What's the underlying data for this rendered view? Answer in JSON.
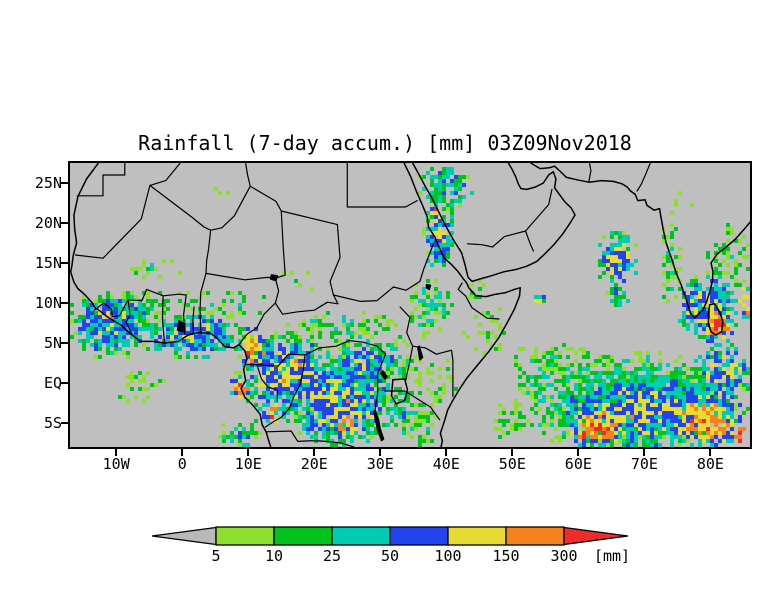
{
  "title": "Rainfall (7-day accum.) [mm] 03Z09Nov2018",
  "chart_data": {
    "type": "heatmap",
    "title": "Rainfall (7-day accum.) [mm] 03Z09Nov2018",
    "variable": "Rainfall (7-day accum.)",
    "unit": "mm",
    "valid_time": "03Z09Nov2018",
    "map_background": "#bfbfbf",
    "frame_color": "#000000",
    "lon_range": [
      -17,
      86
    ],
    "lat_range": [
      -8,
      27.5
    ],
    "x_ticks": [
      {
        "lon": -10,
        "label": "10W"
      },
      {
        "lon": 0,
        "label": "0"
      },
      {
        "lon": 10,
        "label": "10E"
      },
      {
        "lon": 20,
        "label": "20E"
      },
      {
        "lon": 30,
        "label": "30E"
      },
      {
        "lon": 40,
        "label": "40E"
      },
      {
        "lon": 50,
        "label": "50E"
      },
      {
        "lon": 60,
        "label": "60E"
      },
      {
        "lon": 70,
        "label": "70E"
      },
      {
        "lon": 80,
        "label": "80E"
      }
    ],
    "y_ticks": [
      {
        "lat": 25,
        "label": "25N"
      },
      {
        "lat": 20,
        "label": "20N"
      },
      {
        "lat": 15,
        "label": "15N"
      },
      {
        "lat": 10,
        "label": "10N"
      },
      {
        "lat": 5,
        "label": "5N"
      },
      {
        "lat": 0,
        "label": "EQ"
      },
      {
        "lat": -5,
        "label": "5S"
      }
    ],
    "colorbar": {
      "unit_label": "[mm]",
      "thresholds": [
        5,
        10,
        25,
        50,
        100,
        150,
        300
      ],
      "threshold_labels": [
        "5",
        "10",
        "25",
        "50",
        "100",
        "150",
        "300"
      ],
      "below_color": "#b9b9b9",
      "bin_colors": [
        "#8ce02c",
        "#00c41e",
        "#00ccb4",
        "#2244ee",
        "#e8dc30",
        "#f5821e",
        "#ee2c2c"
      ],
      "above_color": "#ee2c2c"
    },
    "rain_regions": [
      [
        -10.5,
        7.3,
        8,
        4.3,
        4,
        0.9
      ],
      [
        -11.2,
        8.2,
        1.6,
        1.1,
        6,
        0.7
      ],
      [
        2,
        6,
        9,
        3,
        4,
        0.85
      ],
      [
        -4,
        14.4,
        5,
        1.4,
        2,
        0.28
      ],
      [
        0,
        9.7,
        15,
        2,
        2,
        0.45
      ],
      [
        24,
        7,
        9,
        2,
        2,
        0.5
      ],
      [
        6.5,
        24,
        1.8,
        1,
        1,
        0.3
      ],
      [
        17.5,
        12.5,
        4,
        2,
        1,
        0.15
      ],
      [
        10.8,
        4.3,
        2.6,
        2.9,
        6,
        0.8
      ],
      [
        16,
        1,
        8,
        5.5,
        4.5,
        0.9
      ],
      [
        24,
        -2.5,
        9,
        6,
        4.5,
        0.9
      ],
      [
        27.5,
        2.5,
        5,
        3,
        4,
        0.8
      ],
      [
        8.8,
        -0.5,
        2,
        1.6,
        6,
        0.7
      ],
      [
        13.8,
        -3.8,
        2.2,
        1.8,
        6,
        0.7
      ],
      [
        25,
        -5.2,
        3,
        2,
        6,
        0.65
      ],
      [
        20.5,
        -1.5,
        1.8,
        1.4,
        6,
        0.6
      ],
      [
        17.2,
        2.8,
        1.6,
        1.3,
        6,
        0.6
      ],
      [
        9,
        -6.5,
        3.5,
        2.3,
        3,
        0.7
      ],
      [
        -6,
        -0.5,
        4,
        2.5,
        1.5,
        0.35
      ],
      [
        32,
        3,
        3.5,
        3,
        2.5,
        0.6
      ],
      [
        33.5,
        -3.5,
        3,
        3.5,
        3,
        0.6
      ],
      [
        36.5,
        -5.5,
        3,
        2.5,
        2,
        0.4
      ],
      [
        37.5,
        9.5,
        3.4,
        4,
        2.5,
        0.6
      ],
      [
        39,
        18.5,
        2.6,
        5,
        4,
        0.8
      ],
      [
        40,
        24.5,
        4.5,
        3.2,
        3.5,
        0.7
      ],
      [
        38.3,
        21.3,
        1.3,
        1.3,
        6,
        0.75
      ],
      [
        38,
        0,
        4.5,
        4.5,
        1.5,
        0.3
      ],
      [
        46.5,
        6.5,
        4,
        3.5,
        1.5,
        0.22
      ],
      [
        45,
        11.5,
        2.5,
        1.5,
        1.5,
        0.25
      ],
      [
        54,
        10.5,
        1.4,
        1,
        4,
        0.8
      ],
      [
        58,
        2,
        5,
        3.5,
        2,
        0.35
      ],
      [
        66,
        15.5,
        3.4,
        3.8,
        4.5,
        0.85
      ],
      [
        66,
        11,
        2.2,
        1.6,
        3,
        0.6
      ],
      [
        73.8,
        15,
        1.9,
        6.5,
        2,
        0.5
      ],
      [
        83,
        15,
        3.5,
        5,
        2,
        0.4
      ],
      [
        76,
        23,
        5,
        3,
        1,
        0.08
      ],
      [
        79.5,
        9.5,
        5,
        4.5,
        4.5,
        0.85
      ],
      [
        81.2,
        7.2,
        3,
        2.8,
        6,
        0.85
      ],
      [
        81.3,
        7.2,
        1.6,
        1.5,
        7,
        0.7
      ],
      [
        86,
        10,
        2.2,
        2.6,
        6,
        0.75
      ],
      [
        68,
        -2.5,
        18,
        6.5,
        3,
        0.9
      ],
      [
        70,
        -3.5,
        14,
        5.5,
        4.5,
        0.85
      ],
      [
        63,
        -5.5,
        5.5,
        3,
        6,
        0.8
      ],
      [
        61.5,
        -6.5,
        2.2,
        1.3,
        7,
        0.65
      ],
      [
        79.5,
        -4.5,
        6.5,
        4.5,
        6,
        0.8
      ],
      [
        84.5,
        -6.5,
        1.8,
        1.3,
        7,
        0.6
      ],
      [
        54,
        1.5,
        5,
        3.5,
        2,
        0.45
      ],
      [
        50,
        -5,
        3.5,
        2.8,
        1.5,
        0.4
      ],
      [
        82,
        1.5,
        5,
        3.5,
        4.5,
        0.8
      ]
    ]
  }
}
